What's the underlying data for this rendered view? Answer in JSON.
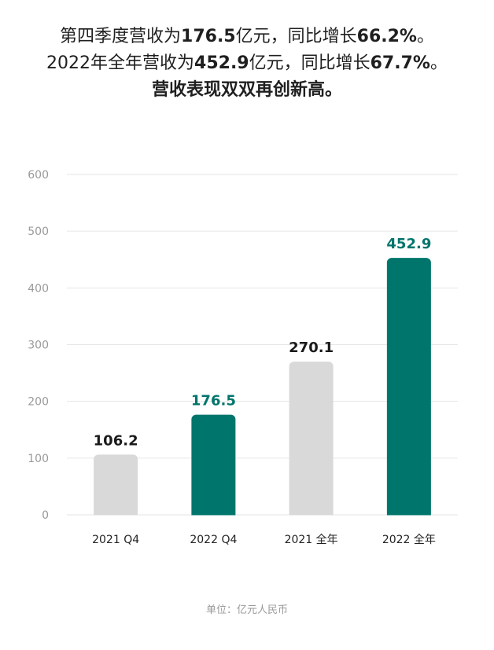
{
  "headline": {
    "line1": [
      {
        "text": "第四季度营收为",
        "bold": false
      },
      {
        "text": "176.5",
        "bold": true
      },
      {
        "text": "亿元，同比增长",
        "bold": false
      },
      {
        "text": "66.2%",
        "bold": true
      },
      {
        "text": "。",
        "bold": false
      }
    ],
    "line2": [
      {
        "text": "2022年全年营收为",
        "bold": false
      },
      {
        "text": "452.9",
        "bold": true
      },
      {
        "text": "亿元，同比增长",
        "bold": false
      },
      {
        "text": "67.7%",
        "bold": true
      },
      {
        "text": "。",
        "bold": false
      }
    ],
    "line3": "营收表现双双再创新高。"
  },
  "chart_data": {
    "type": "bar",
    "categories": [
      "2021 Q4",
      "2022 Q4",
      "2021 全年",
      "2022 全年"
    ],
    "values": [
      106.2,
      176.5,
      270.1,
      452.9
    ],
    "value_labels": [
      "106.2",
      "176.5",
      "270.1",
      "452.9"
    ],
    "bar_colors": [
      "#d9d9d9",
      "#00756c",
      "#d9d9d9",
      "#00756c"
    ],
    "label_colors": [
      "#1a1a1a",
      "#00756c",
      "#1a1a1a",
      "#00756c"
    ],
    "ylim": [
      0,
      600
    ],
    "yticks": [
      0,
      100,
      200,
      300,
      400,
      500,
      600
    ],
    "grid": true,
    "title": "",
    "xlabel": "",
    "ylabel": ""
  },
  "footer": {
    "unit_note": "单位：亿元人民币"
  }
}
